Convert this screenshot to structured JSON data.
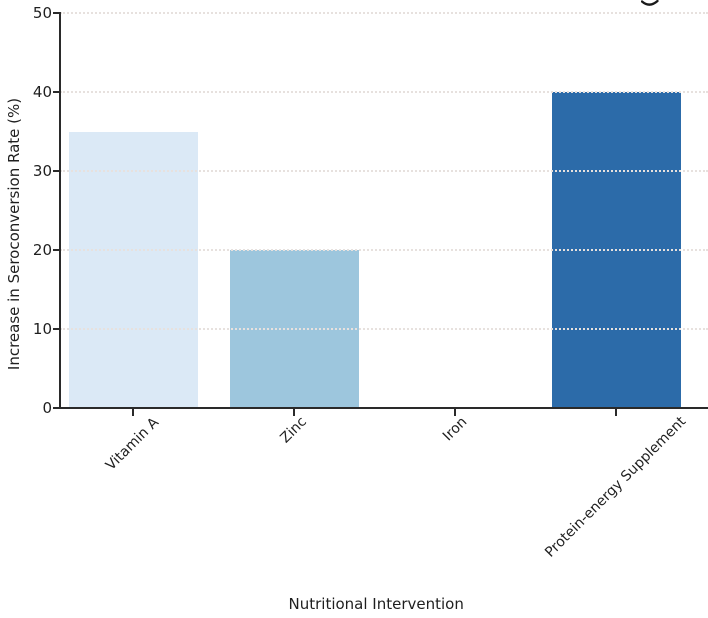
{
  "chart_data": {
    "type": "bar",
    "title": "",
    "xlabel": "Nutritional Intervention",
    "ylabel": "Increase in Seroconversion Rate (%)",
    "categories": [
      "Vitamin A",
      "Zinc",
      "Iron",
      "Protein-energy Supplement"
    ],
    "values": [
      35,
      20,
      0,
      40
    ],
    "bar_colors": [
      "#dbe9f6",
      "#9dc6dd",
      null,
      "#2c6ba9"
    ],
    "yticks": [
      0,
      10,
      20,
      30,
      40,
      50
    ],
    "ytick_labels": [
      "0",
      "10",
      "20",
      "30",
      "40",
      "50"
    ],
    "ylim": [
      0,
      50
    ],
    "grid": "horizontal-dotted",
    "legend_position": "none",
    "cropped_top": true,
    "stray_glyph_fragment": "descender-curve"
  },
  "colors": {
    "background": "#ffffff",
    "spine": "#2a2a2a",
    "text": "#1f1f1f",
    "grid": "#e7e1de",
    "fragment": "#1a1a1a"
  }
}
